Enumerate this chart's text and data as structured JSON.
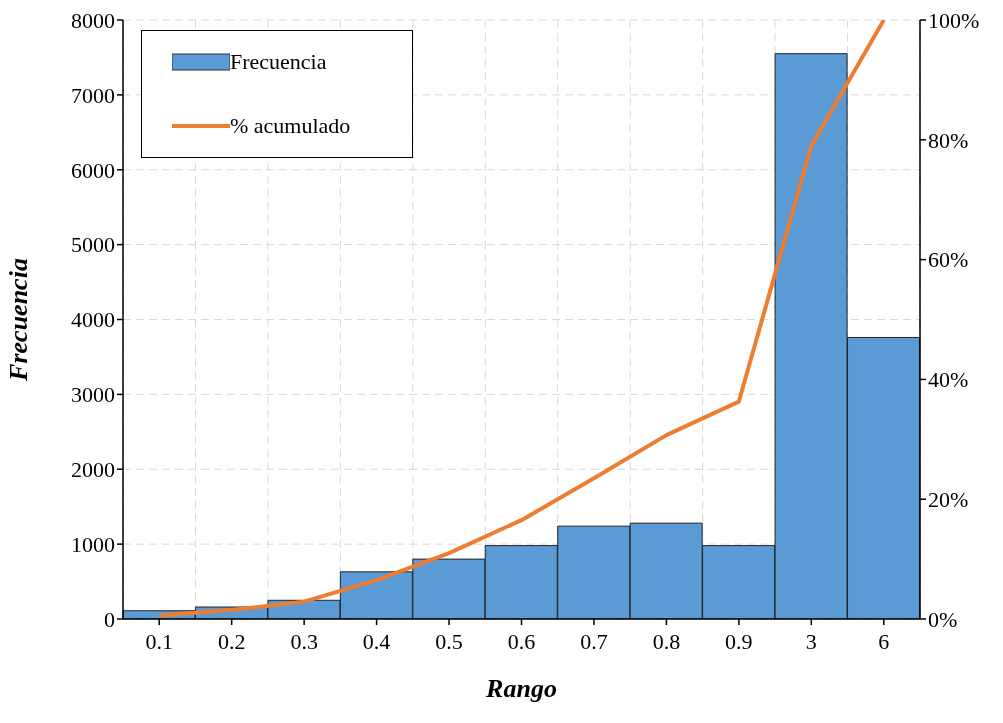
{
  "chart_data": {
    "type": "bar",
    "xlabel": "Rango",
    "ylabel": "Frecuencia",
    "categories": [
      "0.1",
      "0.2",
      "0.3",
      "0.4",
      "0.5",
      "0.6",
      "0.7",
      "0.8",
      "0.9",
      "3",
      "6"
    ],
    "series": [
      {
        "name": "Frecuencia",
        "color": "#5b9bd5",
        "values": [
          110,
          160,
          250,
          630,
          800,
          980,
          1240,
          1280,
          980,
          7550,
          3760
        ]
      },
      {
        "name": "% acumulado",
        "type": "line",
        "axis": "y2",
        "color": "#ed7d31",
        "values": [
          0.6,
          1.5,
          2.9,
          6.5,
          11,
          16.5,
          23.5,
          30.7,
          36.3,
          79,
          100
        ]
      }
    ],
    "ylim": [
      0,
      8000
    ],
    "yticks": [
      0,
      1000,
      2000,
      3000,
      4000,
      5000,
      6000,
      7000,
      8000
    ],
    "y2lim": [
      0,
      100
    ],
    "y2ticks": [
      {
        "value": 0,
        "label": "0%"
      },
      {
        "value": 20,
        "label": "20%"
      },
      {
        "value": 40,
        "label": "40%"
      },
      {
        "value": 60,
        "label": "60%"
      },
      {
        "value": 80,
        "label": "80%"
      },
      {
        "value": 100,
        "label": "100%"
      }
    ],
    "grid": true,
    "legend": "top left",
    "marker": "none",
    "line_style": "solid"
  }
}
